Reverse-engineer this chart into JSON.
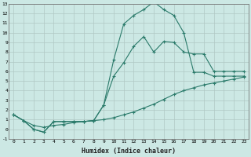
{
  "xlabel": "Humidex (Indice chaleur)",
  "bg_color": "#cce8e4",
  "grid_color": "#b0c8c4",
  "line_color": "#2a7a6a",
  "xlim": [
    -0.5,
    23.5
  ],
  "ylim": [
    -1,
    13
  ],
  "xticks": [
    0,
    1,
    2,
    3,
    4,
    5,
    6,
    7,
    8,
    9,
    10,
    11,
    12,
    13,
    14,
    15,
    16,
    17,
    18,
    19,
    20,
    21,
    22,
    23
  ],
  "yticks": [
    -1,
    0,
    1,
    2,
    3,
    4,
    5,
    6,
    7,
    8,
    9,
    10,
    11,
    12,
    13
  ],
  "line1_x": [
    0,
    1,
    2,
    3,
    4,
    5,
    6,
    7,
    8,
    9,
    10,
    11,
    12,
    13,
    14,
    15,
    16,
    17,
    18,
    19,
    20,
    21,
    22,
    23
  ],
  "line1_y": [
    1.5,
    0.9,
    0.4,
    0.2,
    0.4,
    0.5,
    0.7,
    0.8,
    0.9,
    1.0,
    1.2,
    1.5,
    1.8,
    2.2,
    2.6,
    3.1,
    3.6,
    4.0,
    4.3,
    4.6,
    4.8,
    5.0,
    5.2,
    5.4
  ],
  "line2_x": [
    0,
    1,
    2,
    3,
    4,
    5,
    6,
    7,
    8,
    9,
    10,
    11,
    12,
    13,
    14,
    15,
    16,
    17,
    18,
    19,
    20,
    21,
    22,
    23
  ],
  "line2_y": [
    1.5,
    0.9,
    0.0,
    -0.3,
    0.8,
    0.8,
    0.8,
    0.8,
    0.9,
    2.5,
    7.2,
    10.9,
    11.8,
    12.4,
    13.2,
    12.4,
    11.8,
    10.0,
    5.9,
    5.9,
    5.5,
    5.5,
    5.5,
    5.5
  ],
  "line3_x": [
    0,
    1,
    2,
    3,
    4,
    5,
    6,
    7,
    8,
    9,
    10,
    11,
    12,
    13,
    14,
    15,
    16,
    17,
    18,
    19,
    20,
    21,
    22,
    23
  ],
  "line3_y": [
    1.5,
    0.9,
    0.0,
    -0.3,
    0.8,
    0.8,
    0.8,
    0.8,
    0.9,
    2.5,
    5.5,
    6.9,
    8.6,
    9.6,
    8.0,
    9.1,
    9.0,
    8.0,
    7.8,
    7.8,
    6.0,
    6.0,
    6.0,
    6.0
  ]
}
